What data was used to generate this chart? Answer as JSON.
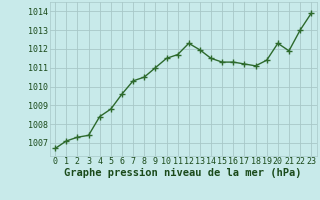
{
  "x": [
    0,
    1,
    2,
    3,
    4,
    5,
    6,
    7,
    8,
    9,
    10,
    11,
    12,
    13,
    14,
    15,
    16,
    17,
    18,
    19,
    20,
    21,
    22,
    23
  ],
  "y": [
    1006.7,
    1007.1,
    1007.3,
    1007.4,
    1008.4,
    1008.8,
    1009.6,
    1010.3,
    1010.5,
    1011.0,
    1011.5,
    1011.7,
    1012.3,
    1011.95,
    1011.5,
    1011.3,
    1011.3,
    1011.2,
    1011.1,
    1011.4,
    1012.3,
    1011.9,
    1013.0,
    1013.9
  ],
  "line_color": "#2d6a2d",
  "marker": "+",
  "marker_size": 4,
  "line_width": 1.0,
  "bg_color": "#c8eaea",
  "grid_color": "#a8c8c8",
  "xlabel": "Graphe pression niveau de la mer (hPa)",
  "xlabel_fontsize": 7.5,
  "xlabel_color": "#1a4a1a",
  "tick_color": "#1a4a1a",
  "tick_fontsize": 6,
  "ytick_vals": [
    1007,
    1008,
    1009,
    1010,
    1011,
    1012,
    1013,
    1014
  ],
  "ytick_labels": [
    "1007",
    "1008",
    "1009",
    "1010",
    "1011",
    "1012",
    "1013",
    "1014"
  ],
  "ylim": [
    1006.3,
    1014.5
  ],
  "xlim": [
    -0.5,
    23.5
  ],
  "xtick_labels": [
    "0",
    "1",
    "2",
    "3",
    "4",
    "5",
    "6",
    "7",
    "8",
    "9",
    "10",
    "11",
    "12",
    "13",
    "14",
    "15",
    "16",
    "17",
    "18",
    "19",
    "20",
    "21",
    "22",
    "23"
  ]
}
